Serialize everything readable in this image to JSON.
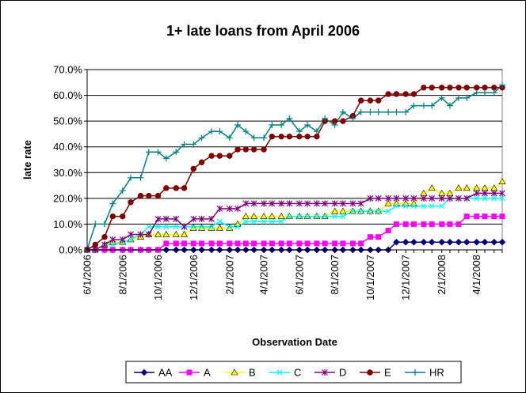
{
  "chart_data": {
    "type": "line",
    "title": "1+ late loans from April 2006",
    "xlabel": "Observation Date",
    "ylabel": "late rate",
    "ylim": [
      0,
      0.7
    ],
    "y_ticks": [
      "0.0%",
      "10.0%",
      "20.0%",
      "30.0%",
      "40.0%",
      "50.0%",
      "60.0%",
      "70.0%"
    ],
    "x_tick_labels": [
      "6/1/2006",
      "8/1/2006",
      "10/1/2006",
      "12/1/2006",
      "2/1/2007",
      "4/1/2007",
      "6/1/2007",
      "8/1/2007",
      "10/1/2007",
      "12/1/2007",
      "2/1/2008",
      "4/1/2008"
    ],
    "x_start": "6/1/2006",
    "x_end": "5/15/2008",
    "grid": "horizontal",
    "legend_position": "bottom",
    "x": [
      "6/1/2006",
      "6/15/2006",
      "7/1/2006",
      "7/15/2006",
      "8/1/2006",
      "8/15/2006",
      "9/1/2006",
      "9/15/2006",
      "10/1/2006",
      "10/15/2006",
      "11/1/2006",
      "11/15/2006",
      "12/1/2006",
      "12/15/2006",
      "1/1/2007",
      "1/15/2007",
      "2/1/2007",
      "2/15/2007",
      "3/1/2007",
      "3/15/2007",
      "4/1/2007",
      "4/15/2007",
      "5/1/2007",
      "5/15/2007",
      "6/1/2007",
      "6/15/2007",
      "7/1/2007",
      "7/15/2007",
      "8/1/2007",
      "8/15/2007",
      "9/1/2007",
      "9/15/2007",
      "10/1/2007",
      "10/15/2007",
      "11/1/2007",
      "11/15/2007",
      "12/1/2007",
      "12/15/2007",
      "1/1/2008",
      "1/15/2008",
      "2/1/2008",
      "2/15/2008",
      "3/1/2008",
      "3/15/2008",
      "4/1/2008",
      "4/15/2008",
      "5/1/2008",
      "5/15/2008"
    ],
    "series": [
      {
        "name": "AA",
        "color": "#000080",
        "marker": "diamond",
        "values": [
          0,
          0,
          0,
          0,
          0,
          0,
          0,
          0,
          0,
          0,
          0,
          0,
          0,
          0,
          0,
          0,
          0,
          0,
          0,
          0,
          0,
          0,
          0,
          0,
          0,
          0,
          0,
          0,
          0,
          0,
          0,
          0,
          0,
          0,
          0,
          0.03,
          0.03,
          0.03,
          0.03,
          0.03,
          0.03,
          0.03,
          0.03,
          0.03,
          0.03,
          0.03,
          0.03,
          0.03
        ]
      },
      {
        "name": "A",
        "color": "#ff00ff",
        "marker": "square",
        "values": [
          0,
          0,
          0,
          0,
          0,
          0,
          0,
          0,
          0,
          0.025,
          0.025,
          0.025,
          0.025,
          0.025,
          0.025,
          0.025,
          0.025,
          0.025,
          0.025,
          0.025,
          0.025,
          0.025,
          0.025,
          0.025,
          0.025,
          0.025,
          0.025,
          0.025,
          0.025,
          0.025,
          0.025,
          0.025,
          0.05,
          0.05,
          0.075,
          0.1,
          0.1,
          0.1,
          0.1,
          0.1,
          0.1,
          0.1,
          0.1,
          0.13,
          0.13,
          0.13,
          0.13,
          0.13
        ]
      },
      {
        "name": "B",
        "color": "#ffff00",
        "marker": "triangle",
        "values": [
          0,
          0,
          0.02,
          0.03,
          0.03,
          0.04,
          0.05,
          0.06,
          0.06,
          0.06,
          0.06,
          0.06,
          0.085,
          0.085,
          0.085,
          0.085,
          0.085,
          0.1,
          0.13,
          0.13,
          0.13,
          0.13,
          0.13,
          0.13,
          0.13,
          0.13,
          0.13,
          0.13,
          0.15,
          0.15,
          0.15,
          0.15,
          0.15,
          0.15,
          0.18,
          0.18,
          0.18,
          0.18,
          0.22,
          0.24,
          0.22,
          0.22,
          0.24,
          0.24,
          0.24,
          0.24,
          0.24,
          0.265
        ]
      },
      {
        "name": "C",
        "color": "#00ffff",
        "marker": "x",
        "values": [
          0,
          0,
          0.02,
          0.02,
          0.03,
          0.04,
          0.06,
          0.09,
          0.09,
          0.09,
          0.09,
          0.09,
          0.09,
          0.09,
          0.09,
          0.11,
          0.09,
          0.09,
          0.11,
          0.11,
          0.11,
          0.11,
          0.11,
          0.13,
          0.13,
          0.13,
          0.13,
          0.13,
          0.13,
          0.13,
          0.15,
          0.15,
          0.15,
          0.15,
          0.15,
          0.17,
          0.17,
          0.17,
          0.17,
          0.17,
          0.17,
          0.2,
          0.2,
          0.2,
          0.2,
          0.2,
          0.2,
          0.2
        ]
      },
      {
        "name": "D",
        "color": "#800080",
        "marker": "star",
        "values": [
          0,
          0,
          0.02,
          0.04,
          0.04,
          0.06,
          0.06,
          0.06,
          0.12,
          0.12,
          0.12,
          0.09,
          0.12,
          0.12,
          0.12,
          0.16,
          0.16,
          0.16,
          0.18,
          0.18,
          0.18,
          0.18,
          0.18,
          0.18,
          0.18,
          0.18,
          0.18,
          0.18,
          0.18,
          0.18,
          0.18,
          0.18,
          0.2,
          0.2,
          0.2,
          0.2,
          0.2,
          0.2,
          0.2,
          0.2,
          0.2,
          0.2,
          0.2,
          0.2,
          0.22,
          0.22,
          0.22,
          0.22
        ]
      },
      {
        "name": "E",
        "color": "#800000",
        "marker": "circle",
        "values": [
          0,
          0.02,
          0.05,
          0.13,
          0.13,
          0.185,
          0.21,
          0.21,
          0.21,
          0.24,
          0.24,
          0.24,
          0.315,
          0.34,
          0.365,
          0.365,
          0.365,
          0.39,
          0.39,
          0.39,
          0.39,
          0.44,
          0.44,
          0.44,
          0.44,
          0.44,
          0.44,
          0.5,
          0.5,
          0.5,
          0.52,
          0.58,
          0.58,
          0.58,
          0.605,
          0.605,
          0.605,
          0.605,
          0.63,
          0.63,
          0.63,
          0.63,
          0.63,
          0.63,
          0.63,
          0.63,
          0.63,
          0.63
        ]
      },
      {
        "name": "HR",
        "color": "#008080",
        "marker": "plus",
        "values": [
          0,
          0.1,
          0.1,
          0.18,
          0.23,
          0.28,
          0.28,
          0.38,
          0.38,
          0.355,
          0.38,
          0.41,
          0.41,
          0.435,
          0.46,
          0.46,
          0.435,
          0.485,
          0.46,
          0.435,
          0.435,
          0.485,
          0.485,
          0.51,
          0.46,
          0.485,
          0.46,
          0.51,
          0.485,
          0.535,
          0.51,
          0.535,
          0.535,
          0.535,
          0.535,
          0.535,
          0.535,
          0.56,
          0.56,
          0.56,
          0.59,
          0.56,
          0.59,
          0.59,
          0.61,
          0.61,
          0.61,
          0.64
        ]
      }
    ]
  }
}
